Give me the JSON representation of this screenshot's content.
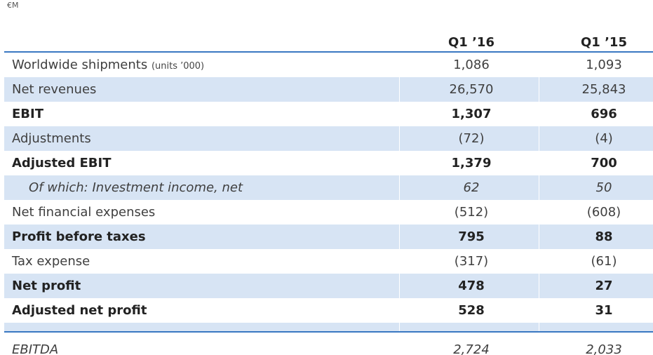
{
  "unit_label": "€M",
  "columns": [
    "Q1 ’16",
    "Q1 ’15"
  ],
  "rows": [
    {
      "label": "Worldwide shipments",
      "sub": "(units ’000)",
      "q1_16": "1,086",
      "q1_15": "1,093"
    },
    {
      "label": "Net revenues",
      "sub": "",
      "q1_16": "26,570",
      "q1_15": "25,843"
    },
    {
      "label": "EBIT",
      "sub": "",
      "q1_16": "1,307",
      "q1_15": "696"
    },
    {
      "label": "Adjustments",
      "sub": "",
      "q1_16": "(72)",
      "q1_15": "(4)"
    },
    {
      "label": "Adjusted EBIT",
      "sub": "",
      "q1_16": "1,379",
      "q1_15": "700"
    },
    {
      "label": "Of which: Investment income, net",
      "sub": "",
      "q1_16": "62",
      "q1_15": "50"
    },
    {
      "label": "Net financial expenses",
      "sub": "",
      "q1_16": "(512)",
      "q1_15": "(608)"
    },
    {
      "label": "Profit before taxes",
      "sub": "",
      "q1_16": "795",
      "q1_15": "88"
    },
    {
      "label": "Tax expense",
      "sub": "",
      "q1_16": "(317)",
      "q1_15": "(61)"
    },
    {
      "label": "Net profit",
      "sub": "",
      "q1_16": "478",
      "q1_15": "27"
    },
    {
      "label": "Adjusted net profit",
      "sub": "",
      "q1_16": "528",
      "q1_15": "31"
    }
  ],
  "cut_row": {
    "label": "EBITDA",
    "q1_16": "2,724",
    "q1_15": "2,033"
  },
  "colors": {
    "row_shade": "#d7e4f4",
    "rule": "#3a78c2",
    "text": "#3f3f3f"
  }
}
